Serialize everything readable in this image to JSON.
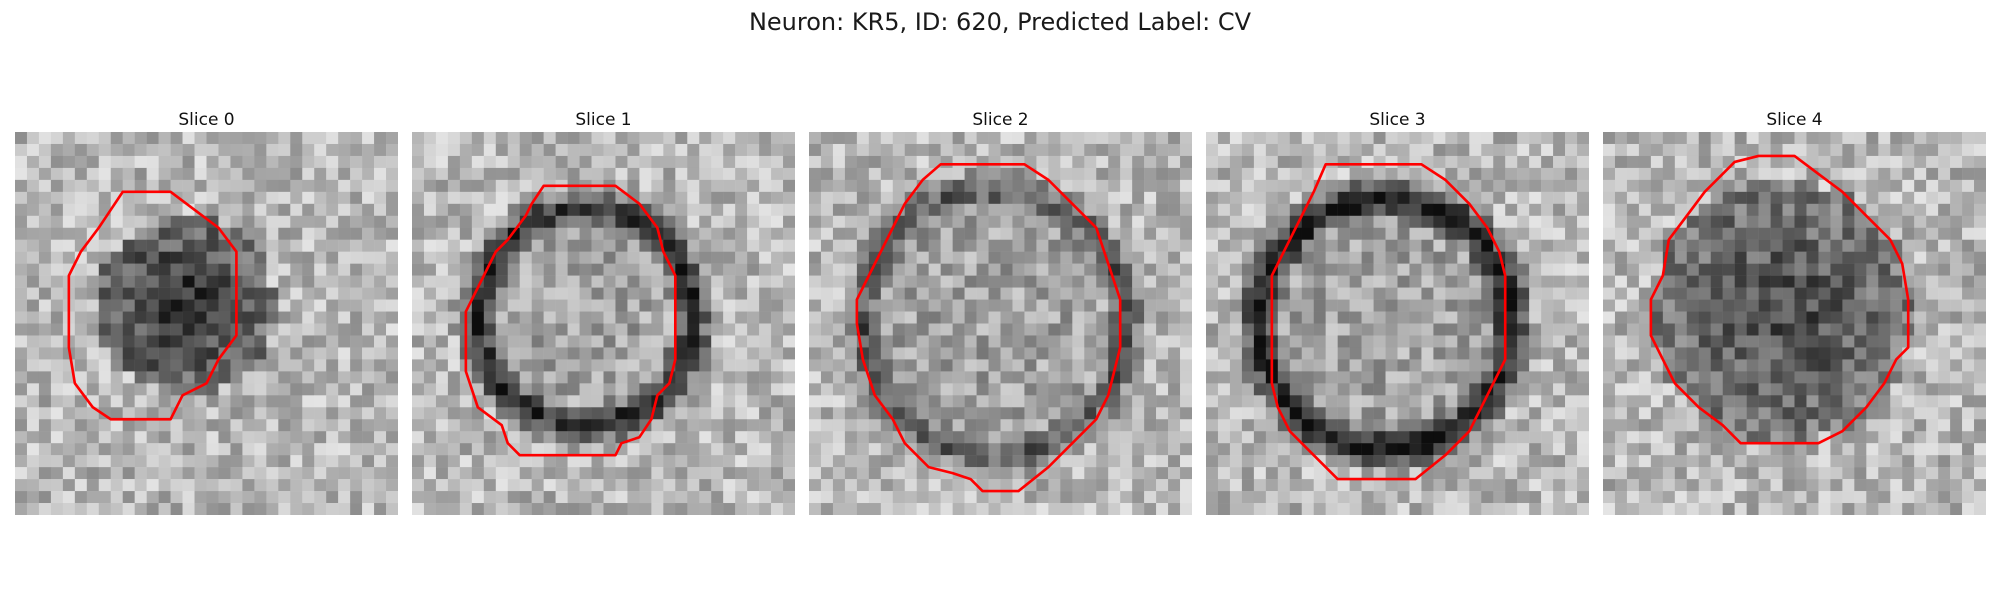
{
  "figure": {
    "title": "Neuron: KR5, ID: 620, Predicted Label: CV",
    "contour_color": "#ff0000",
    "panels": [
      {
        "label": "Slice 0"
      },
      {
        "label": "Slice 1"
      },
      {
        "label": "Slice 2"
      },
      {
        "label": "Slice 3"
      },
      {
        "label": "Slice 4"
      }
    ]
  }
}
